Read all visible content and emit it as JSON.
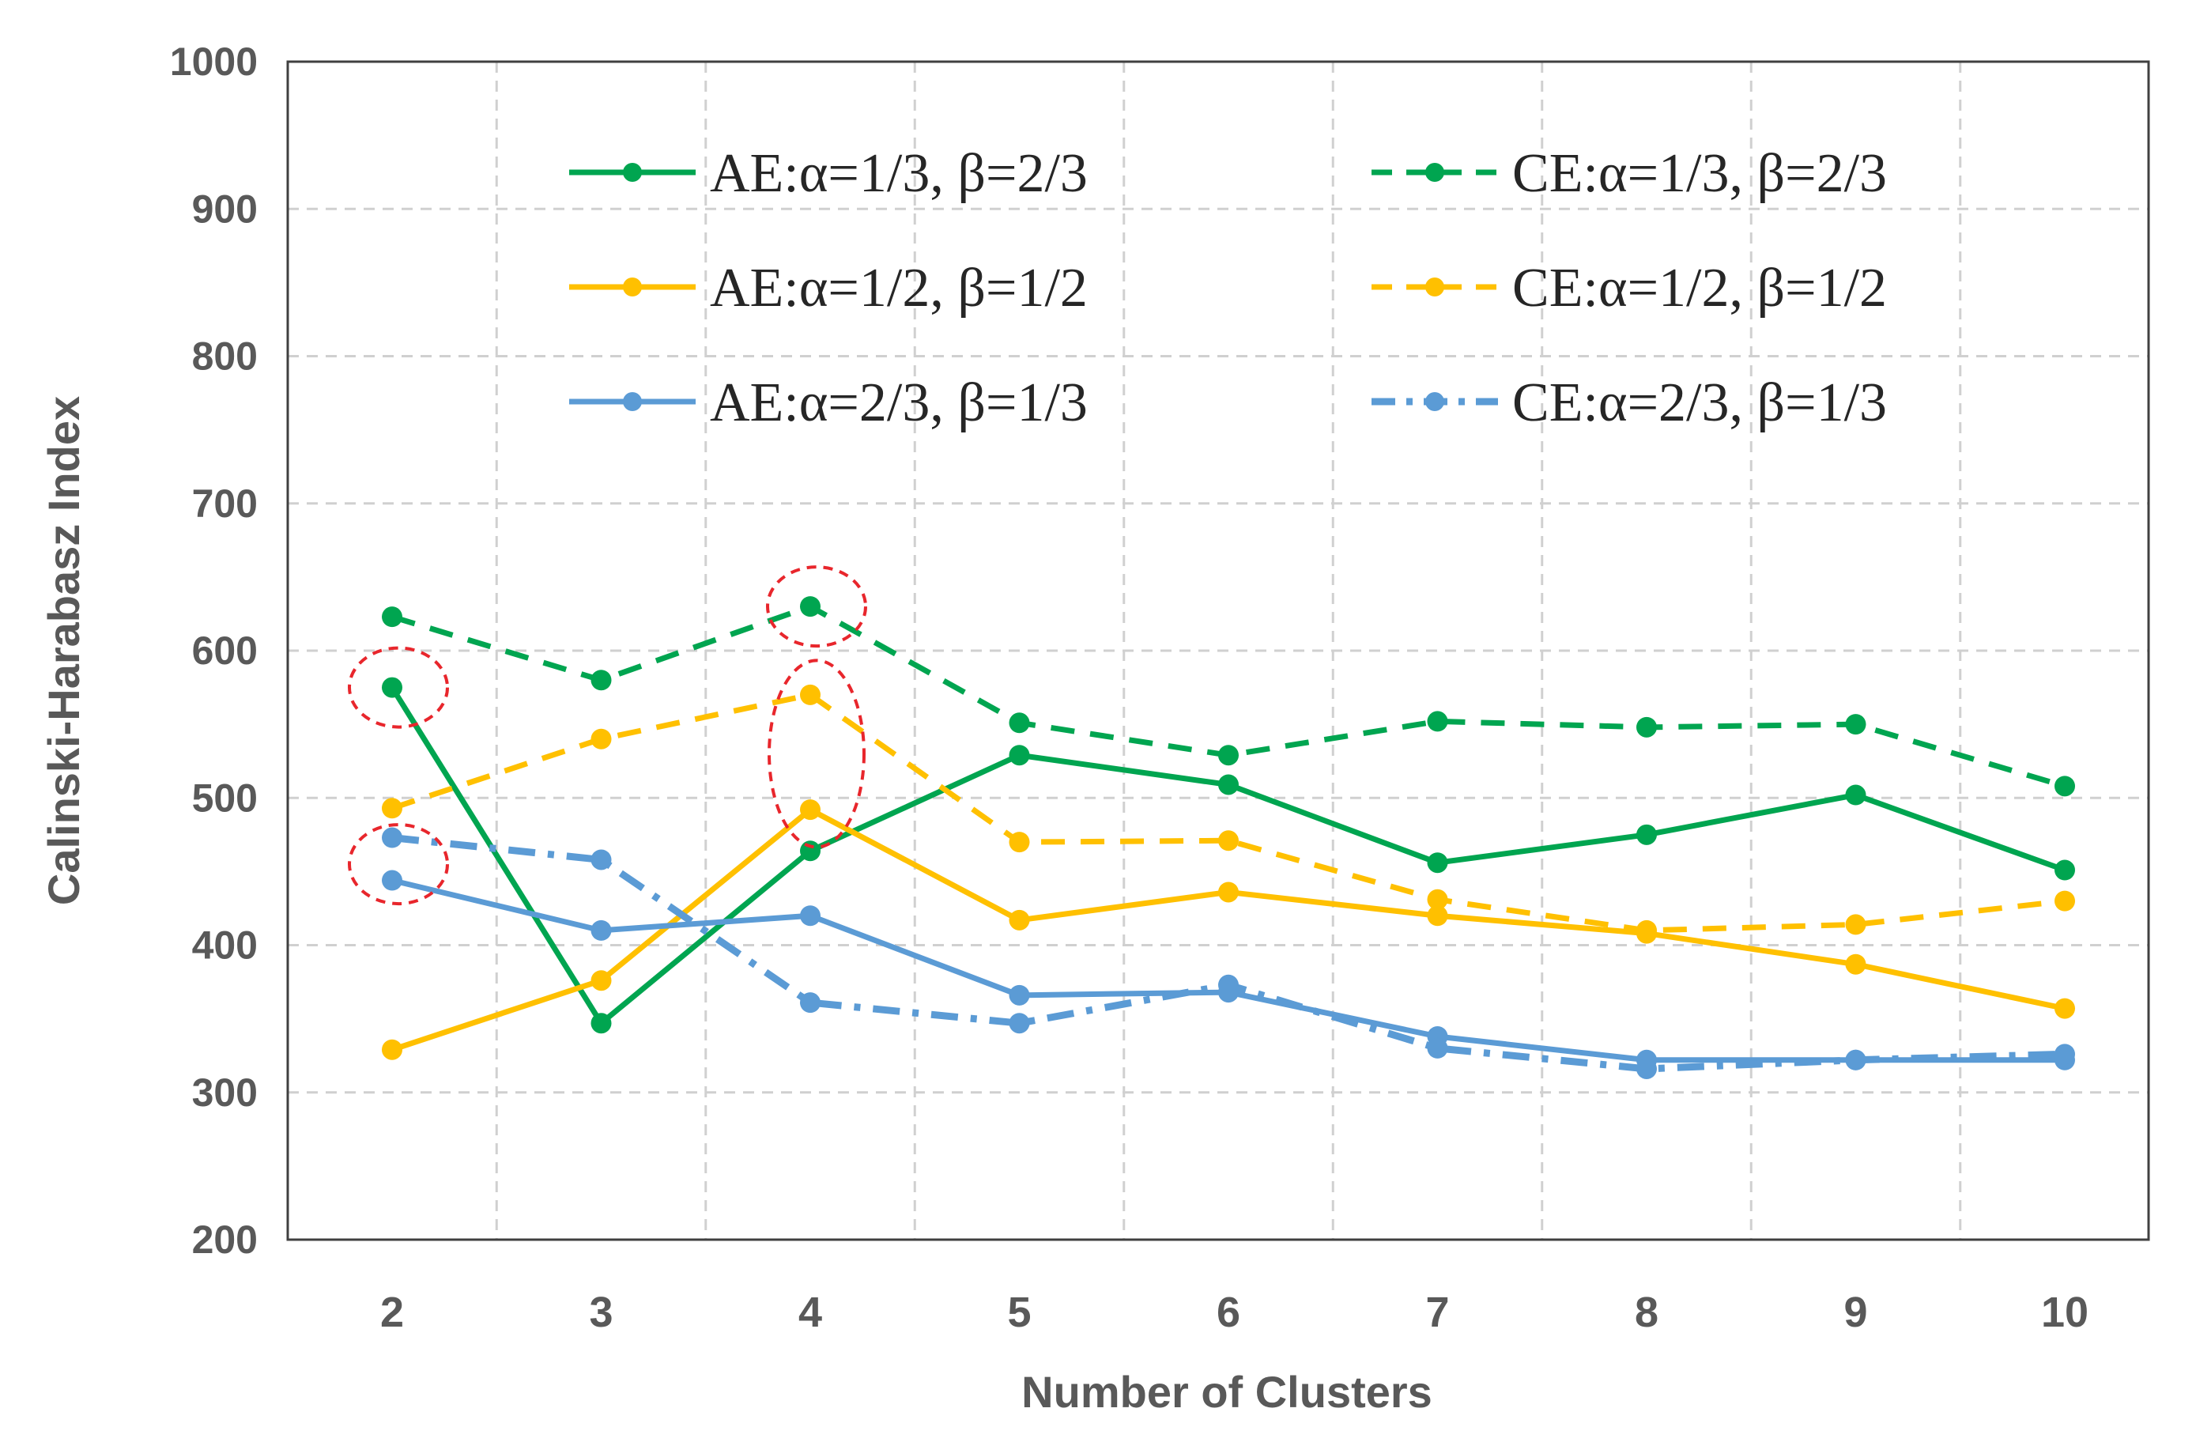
{
  "chart_data": {
    "type": "line",
    "title": "",
    "xlabel": "Number of Clusters",
    "ylabel": "Calinski-Harabasz Index",
    "ylim": [
      200,
      1000
    ],
    "yticks": [
      "200",
      "300",
      "400",
      "500",
      "600",
      "700",
      "800",
      "900",
      "1000"
    ],
    "categories": [
      "2",
      "3",
      "4",
      "5",
      "6",
      "7",
      "8",
      "9",
      "10"
    ],
    "grid": true,
    "legend_position": "top",
    "colors": {
      "green": "#00A550",
      "yellow": "#FFC000",
      "blue": "#5B9BD5",
      "highlight": "#E8262C",
      "grid": "#D0D0D0",
      "axis": "#404040"
    },
    "series": [
      {
        "name": "AE:α=1/3, β=2/3",
        "color": "#00A550",
        "style": "solid",
        "values": [
          575,
          347,
          464,
          529,
          509,
          456,
          475,
          502,
          451
        ]
      },
      {
        "name": "CE:α=1/3, β=2/3",
        "color": "#00A550",
        "style": "dashed",
        "values": [
          623,
          580,
          630,
          551,
          529,
          552,
          548,
          550,
          508
        ]
      },
      {
        "name": "AE:α=1/2, β=1/2",
        "color": "#FFC000",
        "style": "solid",
        "values": [
          329,
          376,
          492,
          417,
          436,
          420,
          408,
          387,
          357
        ]
      },
      {
        "name": "CE:α=1/2, β=1/2",
        "color": "#FFC000",
        "style": "dashed",
        "values": [
          493,
          540,
          570,
          470,
          471,
          431,
          410,
          414,
          430
        ]
      },
      {
        "name": "AE:α=2/3, β=1/3",
        "color": "#5B9BD5",
        "style": "solid",
        "values": [
          444,
          410,
          420,
          366,
          368,
          338,
          322,
          322,
          322
        ]
      },
      {
        "name": "CE:α=2/3, β=1/3",
        "color": "#5B9BD5",
        "style": "dashdot",
        "values": [
          473,
          458,
          361,
          347,
          373,
          330,
          316,
          322,
          326
        ]
      }
    ],
    "highlights": [
      {
        "category": "2",
        "value": 575
      },
      {
        "category": "2",
        "value": 455
      },
      {
        "category": "4",
        "value": 630
      },
      {
        "category": "4",
        "value": 530
      }
    ]
  }
}
